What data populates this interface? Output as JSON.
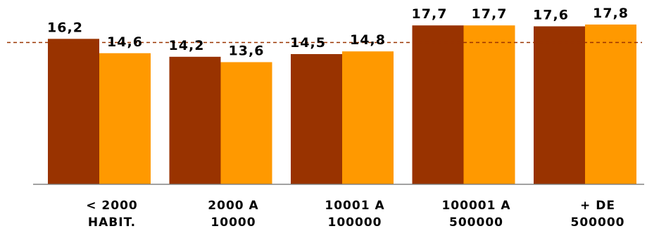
{
  "chart_data": {
    "type": "bar",
    "categories": [
      [
        "< 2000",
        "HABIT."
      ],
      [
        "2000 A",
        "10000"
      ],
      [
        "10001 A",
        "100000"
      ],
      [
        "100001 A",
        "500000"
      ],
      [
        "+ DE",
        "500000"
      ]
    ],
    "series": [
      {
        "values": [
          16.2,
          14.2,
          14.5,
          17.7,
          17.6
        ],
        "labels": [
          "16,2",
          "14,2",
          "14,5",
          "17,7",
          "17,6"
        ],
        "color": "#993300"
      },
      {
        "values": [
          14.6,
          13.6,
          14.8,
          17.7,
          17.8
        ],
        "labels": [
          "14,6",
          "13,6",
          "14,8",
          "17,7",
          "17,8"
        ],
        "color": "#FF9900"
      }
    ],
    "reference_line": {
      "value": 15.8,
      "color": "#993300",
      "style": "dashed"
    },
    "ylim": [
      0,
      18.5
    ],
    "grid": false,
    "legend": "none",
    "axis_color": "#808080"
  }
}
